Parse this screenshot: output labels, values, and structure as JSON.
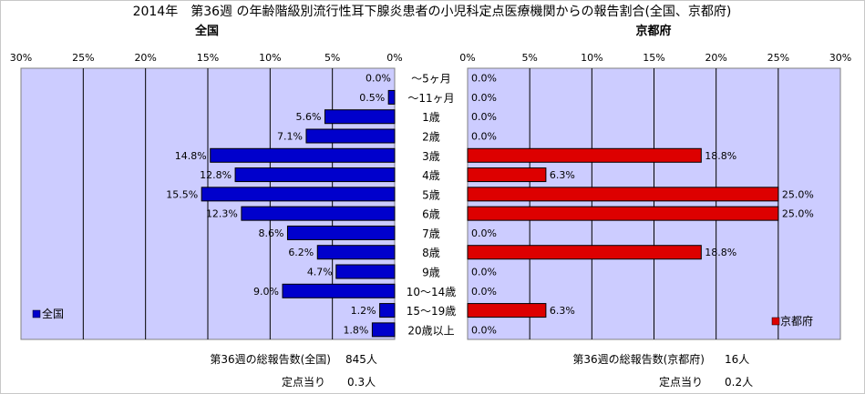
{
  "title": "2014年　第36週 の年齢階級別流行性耳下腺炎患者の小児科定点医療機関からの報告割合(全国、京都府)",
  "chart_data": [
    {
      "type": "bar",
      "orientation": "horizontal",
      "title": "全国",
      "legend": "全国",
      "legend_position": "bottom-left",
      "grid": true,
      "color": "#0000cc",
      "xlim": [
        0,
        30
      ],
      "x_direction": "reversed",
      "x_ticks": [
        "30%",
        "25%",
        "20%",
        "15%",
        "10%",
        "5%",
        "0%"
      ],
      "categories": [
        "～5ヶ月",
        "～11ヶ月",
        "1歳",
        "2歳",
        "3歳",
        "4歳",
        "5歳",
        "6歳",
        "7歳",
        "8歳",
        "9歳",
        "10～14歳",
        "15～19歳",
        "20歳以上"
      ],
      "values": [
        0.0,
        0.5,
        5.6,
        7.1,
        14.8,
        12.8,
        15.5,
        12.3,
        8.6,
        6.2,
        4.7,
        9.0,
        1.2,
        1.8
      ],
      "labels": [
        "0.0%",
        "0.5%",
        "5.6%",
        "7.1%",
        "14.8%",
        "12.8%",
        "15.5%",
        "12.3%",
        "8.6%",
        "6.2%",
        "4.7%",
        "9.0%",
        "1.2%",
        "1.8%"
      ]
    },
    {
      "type": "bar",
      "orientation": "horizontal",
      "title": "京都府",
      "legend": "京都府",
      "legend_position": "bottom-right",
      "grid": true,
      "color": "#dd0000",
      "xlim": [
        0,
        30
      ],
      "x_direction": "normal",
      "x_ticks": [
        "0%",
        "5%",
        "10%",
        "15%",
        "20%",
        "25%",
        "30%"
      ],
      "categories": [
        "～5ヶ月",
        "～11ヶ月",
        "1歳",
        "2歳",
        "3歳",
        "4歳",
        "5歳",
        "6歳",
        "7歳",
        "8歳",
        "9歳",
        "10～14歳",
        "15～19歳",
        "20歳以上"
      ],
      "values": [
        0.0,
        0.0,
        0.0,
        0.0,
        18.8,
        6.3,
        25.0,
        25.0,
        0.0,
        18.8,
        0.0,
        0.0,
        6.3,
        0.0
      ],
      "labels": [
        "0.0%",
        "0.0%",
        "0.0%",
        "0.0%",
        "18.8%",
        "6.3%",
        "25.0%",
        "25.0%",
        "0.0%",
        "18.8%",
        "0.0%",
        "0.0%",
        "6.3%",
        "0.0%"
      ]
    }
  ],
  "footer": {
    "national_total_label": "第36週の総報告数(全国)",
    "national_total_value": "845人",
    "national_per_label": "定点当り",
    "national_per_value": "0.3人",
    "kyoto_total_label": "第36週の総報告数(京都府)",
    "kyoto_total_value": "16人",
    "kyoto_per_label": "定点当り",
    "kyoto_per_value": "0.2人"
  }
}
